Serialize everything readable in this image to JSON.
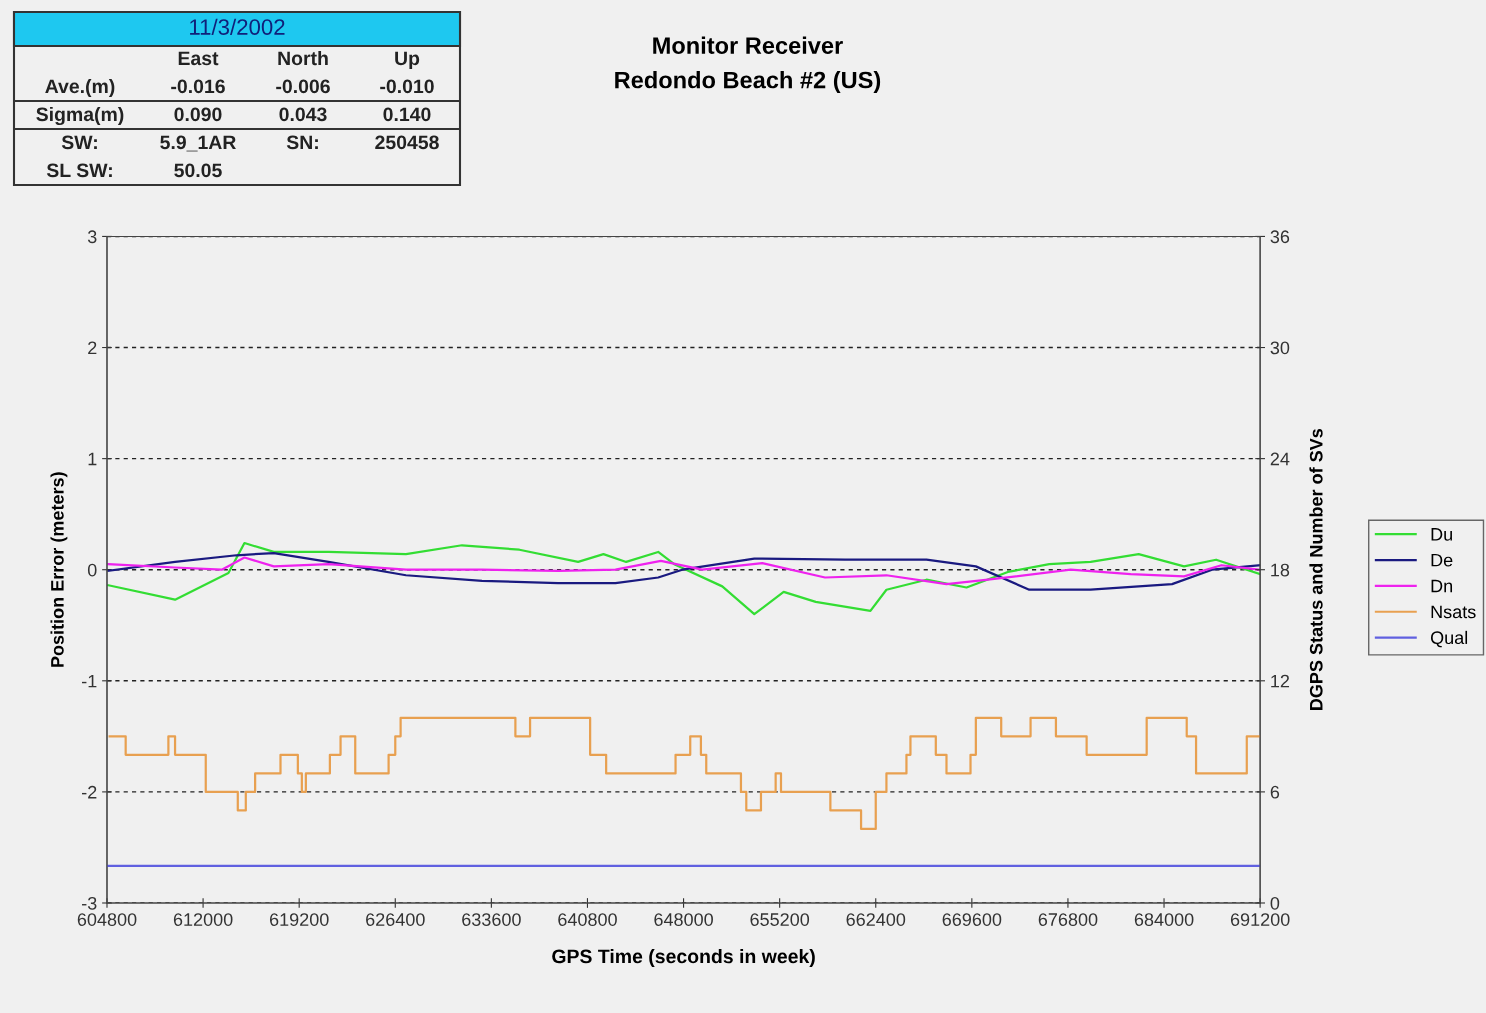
{
  "chart_data": {
    "type": "line",
    "title": "Monitor Receiver",
    "subtitle": "Redondo Beach #2 (US)",
    "xlabel": "GPS Time (seconds in week)",
    "ylabel": "Position Error (meters)",
    "y2label": "DGPS Status and Number of SVs",
    "annotations": [
      "11/3/2002",
      "East",
      "North",
      "Up",
      "Ave.(m)",
      "-0.016",
      "-0.006",
      "-0.010",
      "Sigma(m)",
      "0.090",
      "0.043",
      "0.140",
      "SW:",
      "5.9_1AR",
      "SN:",
      "250458",
      "SL SW:",
      "50.05"
    ],
    "xlim": [
      604800,
      691200
    ],
    "xticks": [
      604800,
      612000,
      619200,
      626400,
      633600,
      640800,
      648000,
      655200,
      662400,
      669600,
      676800,
      684000,
      691200
    ],
    "ylim": [
      -3,
      3
    ],
    "yticks": [
      -3,
      -2,
      -1,
      0,
      1,
      2,
      3
    ],
    "y2lim": [
      0,
      36
    ],
    "y2ticks": [
      0,
      6,
      12,
      18,
      24,
      30,
      36
    ],
    "grid": "y",
    "legend": "right",
    "series": [
      {
        "name": "Du",
        "color": "#33dd33",
        "x": [
          604900,
          609900,
          613900,
          615100,
          617300,
          621400,
          627200,
          631400,
          635700,
          640100,
          642000,
          643700,
          646100,
          647300,
          650900,
          653300,
          655500,
          657900,
          662000,
          663200,
          666200,
          669200,
          672300,
          675400,
          678500,
          682100,
          685500,
          687900,
          691200
        ],
        "values": [
          -0.14,
          -0.27,
          -0.03,
          0.24,
          0.16,
          0.16,
          0.14,
          0.22,
          0.18,
          0.07,
          0.14,
          0.07,
          0.16,
          0.05,
          -0.15,
          -0.4,
          -0.2,
          -0.29,
          -0.37,
          -0.18,
          -0.09,
          -0.16,
          -0.02,
          0.05,
          0.07,
          0.14,
          0.03,
          0.09,
          -0.04
        ]
      },
      {
        "name": "De",
        "color": "#1a1a80",
        "x": [
          604900,
          609900,
          614500,
          617300,
          621400,
          627200,
          632900,
          638600,
          642900,
          646100,
          647900,
          653300,
          660100,
          666200,
          669900,
          673900,
          678500,
          684600,
          687600,
          691200
        ],
        "values": [
          -0.01,
          0.07,
          0.13,
          0.15,
          0.07,
          -0.05,
          -0.1,
          -0.12,
          -0.12,
          -0.07,
          0,
          0.1,
          0.09,
          0.09,
          0.03,
          -0.18,
          -0.18,
          -0.13,
          0,
          0.04
        ]
      },
      {
        "name": "Dn",
        "color": "#ee22ee",
        "x": [
          604900,
          609900,
          613400,
          615100,
          617300,
          621400,
          627200,
          632900,
          638600,
          642900,
          646300,
          649400,
          653900,
          658600,
          663200,
          667700,
          670800,
          677000,
          681500,
          685500,
          688300,
          691200
        ],
        "values": [
          0.05,
          0.02,
          0,
          0.11,
          0.03,
          0.05,
          0,
          0,
          -0.01,
          0,
          0.08,
          0,
          0.06,
          -0.07,
          -0.05,
          -0.13,
          -0.09,
          0,
          -0.04,
          -0.06,
          0.04,
          0
        ]
      },
      {
        "name": "Nsats",
        "type": "step",
        "axis": "y2",
        "color": "#e8a050",
        "x": [
          605000,
          606200,
          609400,
          609900,
          612200,
          614600,
          615200,
          615900,
          617800,
          619100,
          619400,
          619700,
          621500,
          622300,
          623400,
          625900,
          626400,
          626800,
          635400,
          636500,
          641000,
          642200,
          647400,
          648500,
          649300,
          649700,
          652300,
          652700,
          653800,
          654900,
          655300,
          659000,
          661300,
          662400,
          663200,
          664700,
          665000,
          666900,
          667700,
          669500,
          669900,
          671800,
          674000,
          675900,
          678200,
          682700,
          685700,
          686400,
          690200,
          691200
        ],
        "values": [
          9,
          8,
          9,
          8,
          6,
          5,
          6,
          7,
          8,
          7,
          6,
          7,
          8,
          9,
          7,
          8,
          9,
          10,
          9,
          10,
          8,
          7,
          8,
          9,
          8,
          7,
          6,
          5,
          6,
          7,
          6,
          5,
          4,
          6,
          7,
          8,
          9,
          8,
          7,
          8,
          10,
          9,
          10,
          9,
          8,
          10,
          9,
          7,
          9,
          9
        ]
      },
      {
        "name": "Qual",
        "axis": "y2",
        "color": "#6060e0",
        "x": [
          604800,
          691200
        ],
        "values": [
          2,
          2
        ]
      }
    ]
  }
}
